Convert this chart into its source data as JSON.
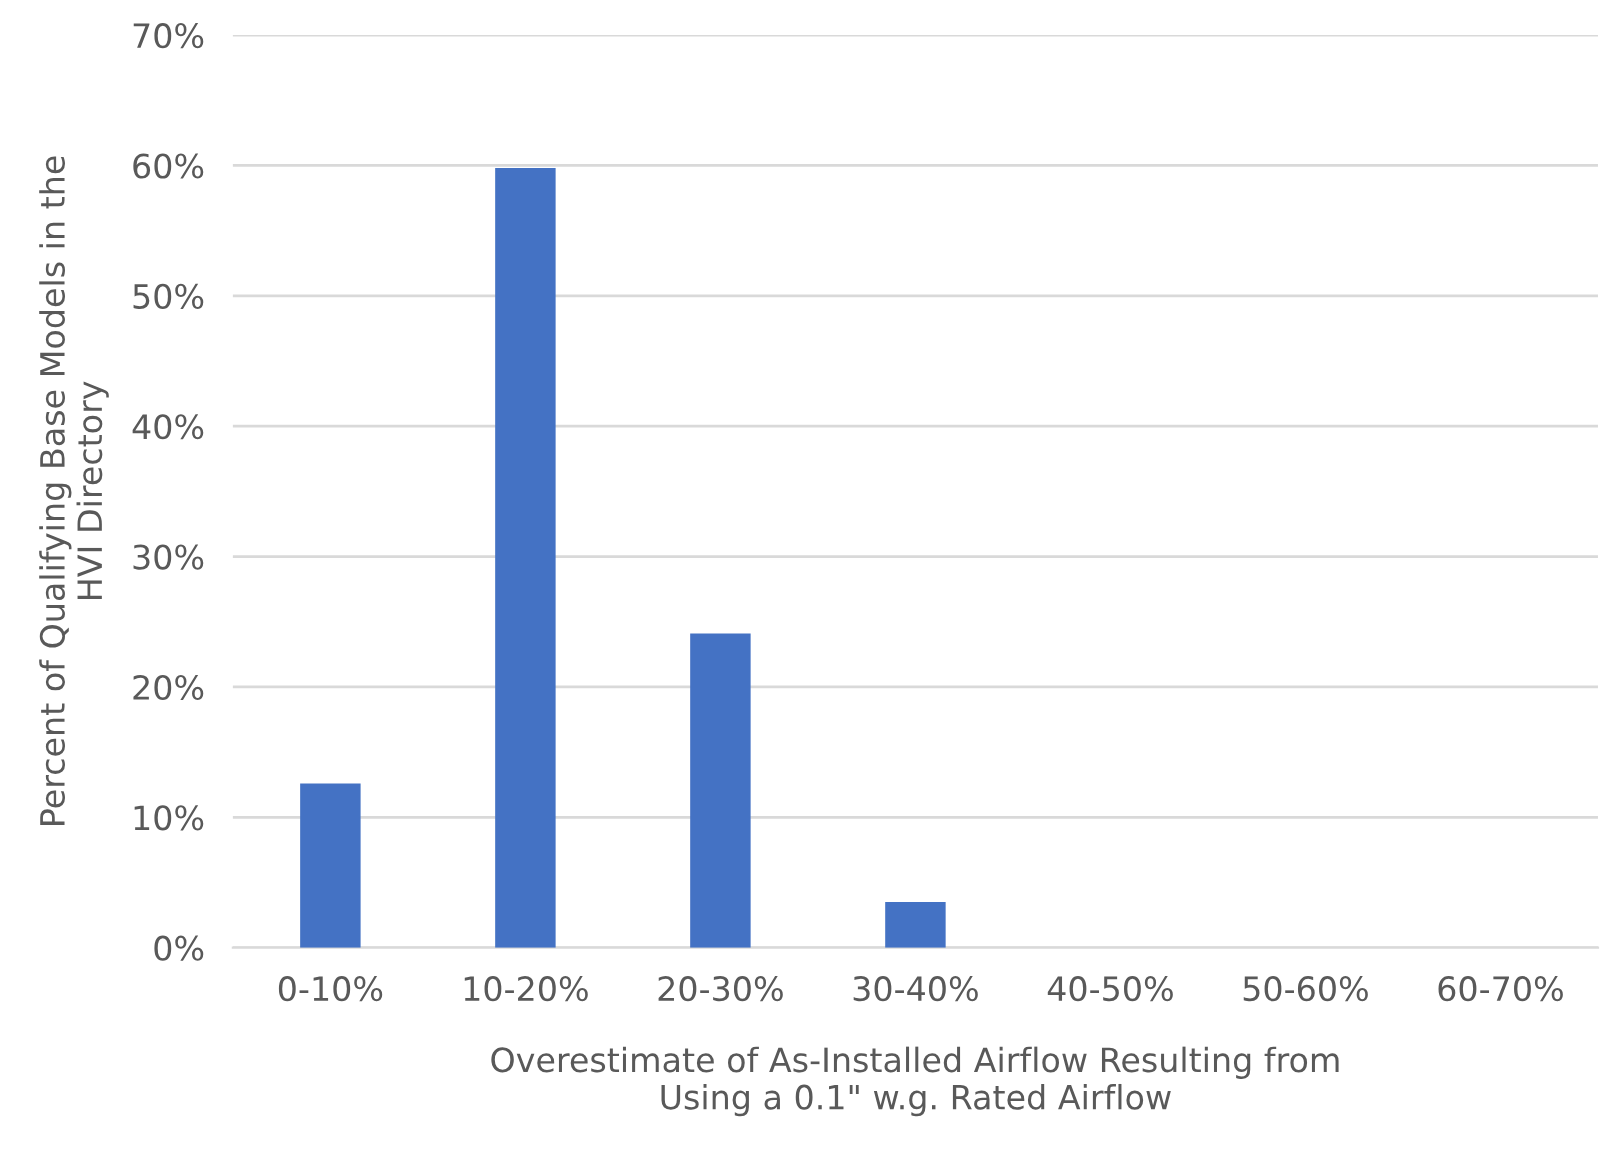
{
  "chart_data": {
    "type": "bar",
    "categories": [
      "0-10%",
      "10-20%",
      "20-30%",
      "30-40%",
      "40-50%",
      "50-60%",
      "60-70%"
    ],
    "values": [
      12.6,
      59.8,
      24.1,
      3.5,
      0,
      0,
      0
    ],
    "color": "#4472c4",
    "xlabel": "Overestimate of As-Installed Airflow Resulting from\nUsing a 0.1\" w.g. Rated Airflow",
    "ylabel": "Percent of Qualifying Base Models in the\nHVI Directory",
    "ylim": [
      0,
      70
    ],
    "yticks": [
      {
        "value": 0,
        "label": "0%"
      },
      {
        "value": 10,
        "label": "10%"
      },
      {
        "value": 20,
        "label": "20%"
      },
      {
        "value": 30,
        "label": "30%"
      },
      {
        "value": 40,
        "label": "40%"
      },
      {
        "value": 50,
        "label": "50%"
      },
      {
        "value": 60,
        "label": "60%"
      },
      {
        "value": 70,
        "label": "70%"
      }
    ],
    "grid": "y"
  }
}
